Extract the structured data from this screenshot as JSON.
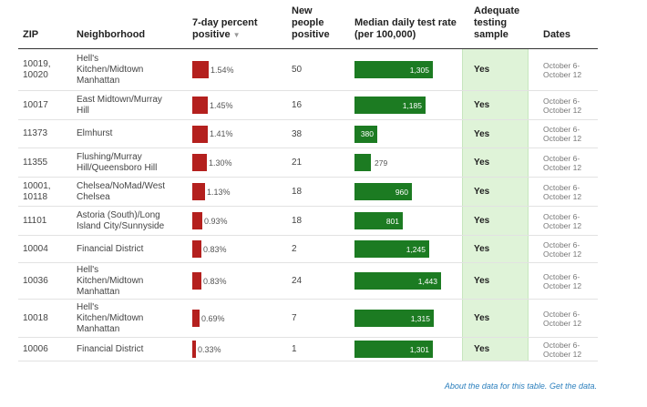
{
  "headers": {
    "zip": "ZIP",
    "neighborhood": "Neighborhood",
    "percent_positive": [
      "7-day percent",
      "positive"
    ],
    "new_positive": [
      "New",
      "people",
      "positive"
    ],
    "test_rate": [
      "Median daily test rate",
      "(per 100,000)"
    ],
    "adequate": [
      "Adequate",
      "testing",
      "sample"
    ],
    "dates": "Dates"
  },
  "rows": [
    {
      "zip": [
        "10019,",
        "10020"
      ],
      "neighborhood": [
        "Hell's",
        "Kitchen/Midtown",
        "Manhattan"
      ],
      "percent": 1.54,
      "percent_label": "1.54%",
      "new_positive": "50",
      "rate": 1305,
      "rate_label": "1,305",
      "adequate": "Yes",
      "dates": [
        "October 6-",
        "October 12"
      ]
    },
    {
      "zip": [
        "10017"
      ],
      "neighborhood": [
        "East Midtown/Murray",
        "Hill"
      ],
      "percent": 1.45,
      "percent_label": "1.45%",
      "new_positive": "16",
      "rate": 1185,
      "rate_label": "1,185",
      "adequate": "Yes",
      "dates": [
        "October 6-",
        "October 12"
      ]
    },
    {
      "zip": [
        "11373"
      ],
      "neighborhood": [
        "Elmhurst"
      ],
      "percent": 1.41,
      "percent_label": "1.41%",
      "new_positive": "38",
      "rate": 380,
      "rate_label": "380",
      "adequate": "Yes",
      "dates": [
        "October 6-",
        "October 12"
      ]
    },
    {
      "zip": [
        "11355"
      ],
      "neighborhood": [
        "Flushing/Murray",
        "Hill/Queensboro Hill"
      ],
      "percent": 1.3,
      "percent_label": "1.30%",
      "new_positive": "21",
      "rate": 279,
      "rate_label": "279",
      "adequate": "Yes",
      "dates": [
        "October 6-",
        "October 12"
      ]
    },
    {
      "zip": [
        "10001,",
        "10118"
      ],
      "neighborhood": [
        "Chelsea/NoMad/West",
        "Chelsea"
      ],
      "percent": 1.13,
      "percent_label": "1.13%",
      "new_positive": "18",
      "rate": 960,
      "rate_label": "960",
      "adequate": "Yes",
      "dates": [
        "October 6-",
        "October 12"
      ]
    },
    {
      "zip": [
        "11101"
      ],
      "neighborhood": [
        "Astoria (South)/Long",
        "Island City/Sunnyside"
      ],
      "percent": 0.93,
      "percent_label": "0.93%",
      "new_positive": "18",
      "rate": 801,
      "rate_label": "801",
      "adequate": "Yes",
      "dates": [
        "October 6-",
        "October 12"
      ]
    },
    {
      "zip": [
        "10004"
      ],
      "neighborhood": [
        "Financial District"
      ],
      "percent": 0.83,
      "percent_label": "0.83%",
      "new_positive": "2",
      "rate": 1245,
      "rate_label": "1,245",
      "adequate": "Yes",
      "dates": [
        "October 6-",
        "October 12"
      ]
    },
    {
      "zip": [
        "10036"
      ],
      "neighborhood": [
        "Hell's",
        "Kitchen/Midtown",
        "Manhattan"
      ],
      "percent": 0.83,
      "percent_label": "0.83%",
      "new_positive": "24",
      "rate": 1443,
      "rate_label": "1,443",
      "adequate": "Yes",
      "dates": [
        "October 6-",
        "October 12"
      ]
    },
    {
      "zip": [
        "10018"
      ],
      "neighborhood": [
        "Hell's",
        "Kitchen/Midtown",
        "Manhattan"
      ],
      "percent": 0.69,
      "percent_label": "0.69%",
      "new_positive": "7",
      "rate": 1315,
      "rate_label": "1,315",
      "adequate": "Yes",
      "dates": [
        "October 6-",
        "October 12"
      ]
    },
    {
      "zip": [
        "10006"
      ],
      "neighborhood": [
        "Financial District"
      ],
      "percent": 0.33,
      "percent_label": "0.33%",
      "new_positive": "1",
      "rate": 1301,
      "rate_label": "1,301",
      "adequate": "Yes",
      "dates": [
        "October 6-",
        "October 12"
      ]
    }
  ],
  "footer": {
    "prefix": "About the data for this table.",
    "link": "Get the data."
  },
  "colors": {
    "percent_bar": "#b4201e",
    "rate_bar": "#1c7b22",
    "adequate_bg": "#dff3d8",
    "footer_link": "#2b7fbd"
  },
  "icons": {
    "sort": "sort-down-triangle-icon"
  }
}
